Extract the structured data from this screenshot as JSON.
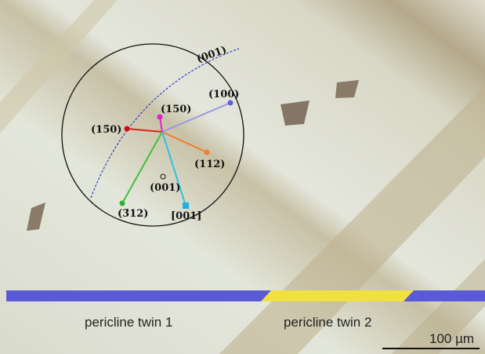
{
  "stereonet": {
    "plane_label": "(001)",
    "poles": [
      {
        "label": "(100)"
      },
      {
        "label": "(150)"
      },
      {
        "label": "(15̄0)"
      },
      {
        "label": "(112)"
      },
      {
        "label": "(001)"
      },
      {
        "label": "(3̄12)"
      },
      {
        "label": "[001]"
      }
    ]
  },
  "twins": [
    {
      "label": "pericline twin 1"
    },
    {
      "label": "pericline twin 2"
    }
  ],
  "scale_bar": {
    "label": "100 µm"
  }
}
